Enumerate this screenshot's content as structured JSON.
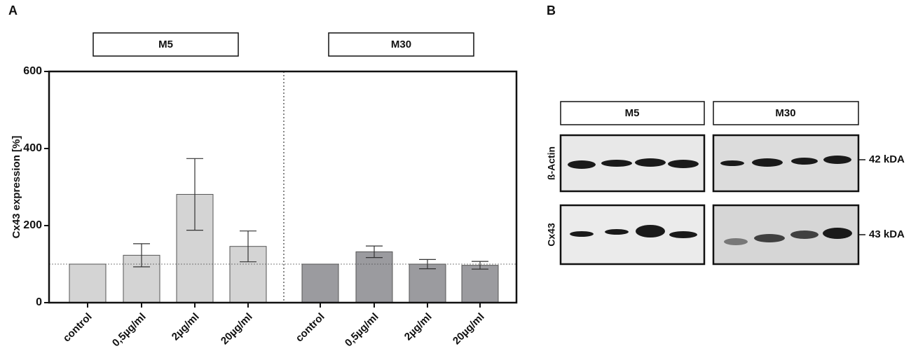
{
  "chart_data": {
    "type": "bar",
    "panel_label": "A",
    "ylabel": "Cx43 expression [%]",
    "categories": [
      "control",
      "0,5µg/ml",
      "2µg/ml",
      "20µg/ml",
      "control",
      "0,5µg/ml",
      "2µg/ml",
      "20µg/ml"
    ],
    "series": [
      {
        "name": "M5",
        "color": "#d4d4d4",
        "values": [
          100,
          123,
          281,
          146,
          null,
          null,
          null,
          null
        ],
        "errors": [
          null,
          30,
          93,
          40,
          null,
          null,
          null,
          null
        ]
      },
      {
        "name": "M30",
        "color": "#9b9b9f",
        "values": [
          null,
          null,
          null,
          null,
          100,
          132,
          100,
          97
        ],
        "errors": [
          null,
          null,
          null,
          null,
          null,
          15,
          12,
          10
        ]
      }
    ],
    "reference_line": 100,
    "ylim": [
      0,
      600
    ],
    "yticks": [
      0,
      200,
      400,
      600
    ],
    "grid": false
  },
  "panel_b": {
    "label": "B",
    "groups": [
      "M5",
      "M30"
    ],
    "rows": [
      "ß-Actin",
      "Cx43"
    ],
    "sizes": [
      "42 kDA",
      "43 kDA"
    ]
  }
}
